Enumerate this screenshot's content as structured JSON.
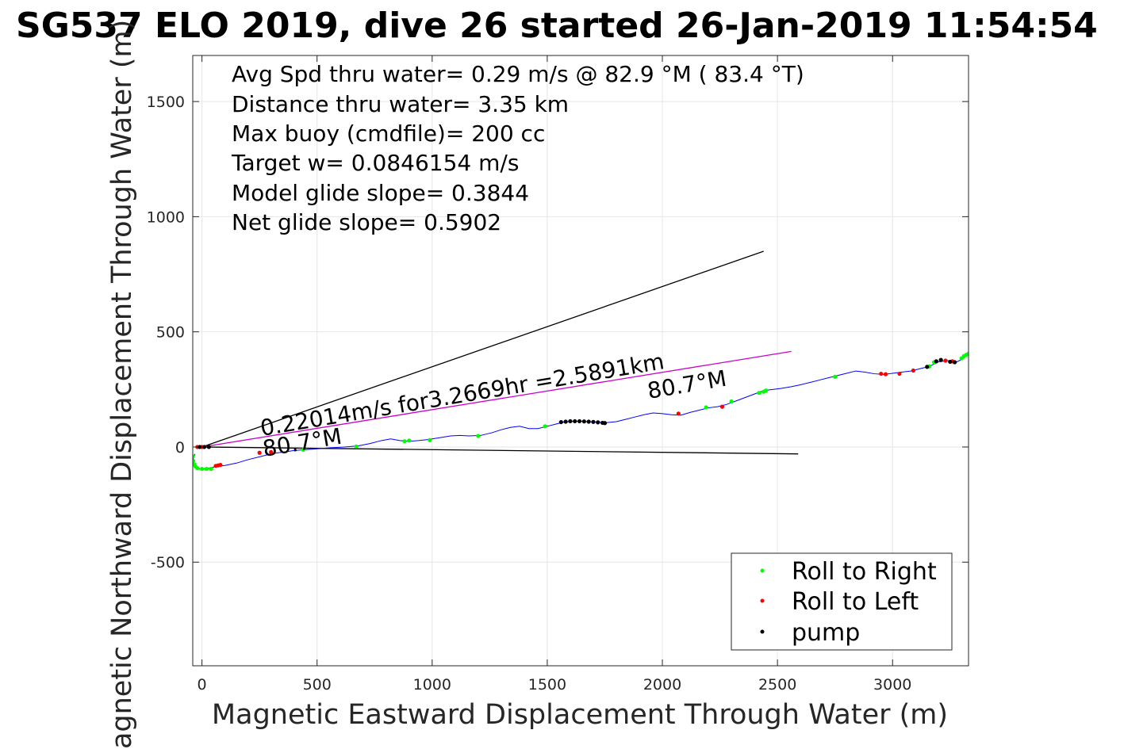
{
  "chart_data": {
    "type": "scatter",
    "title": "SG537 ELO 2019, dive 26 started 26-Jan-2019 11:54:54",
    "xlabel": "Magnetic Eastward Displacement Through Water (m)",
    "ylabel": "Magnetic Northward Displacement Through Water (m)",
    "xlim": [
      -40,
      3330
    ],
    "ylim": [
      -950,
      1700
    ],
    "xticks": [
      0,
      500,
      1000,
      1500,
      2000,
      2500,
      3000
    ],
    "yticks": [
      -500,
      0,
      500,
      1000,
      1500
    ],
    "grid": true,
    "stats": [
      "Avg Spd thru water=  0.29 m/s @  82.9 °M ( 83.4 °T)",
      "Distance thru water=  3.35 km",
      "Max buoy (cmdfile)= 200 cc",
      "Target w= 0.0846154 m/s",
      "Model glide slope= 0.3844",
      "Net glide slope= 0.5902"
    ],
    "annotations": {
      "current_label": "0.22014m/s for3.2669hr =2.5891km",
      "heading_label_1": "80.7°M",
      "heading_label_2": "80.7°M"
    },
    "reference_lines": [
      {
        "name": "upper",
        "color": "#000000",
        "x": [
          0,
          2440
        ],
        "y": [
          0,
          850
        ]
      },
      {
        "name": "lower",
        "color": "#000000",
        "x": [
          0,
          2590
        ],
        "y": [
          0,
          -30
        ]
      },
      {
        "name": "current",
        "color": "#cc00cc",
        "x": [
          0,
          2560
        ],
        "y": [
          0,
          415
        ]
      }
    ],
    "track": {
      "color": "#0000ff",
      "x": [
        -30,
        -40,
        -35,
        -20,
        0,
        30,
        60,
        100,
        150,
        200,
        260,
        300,
        330,
        370,
        400,
        440,
        500,
        560,
        620,
        680,
        730,
        780,
        820,
        860,
        900,
        940,
        980,
        1030,
        1080,
        1120,
        1160,
        1210,
        1260,
        1300,
        1340,
        1380,
        1420,
        1460,
        1500,
        1540,
        1570,
        1600,
        1640,
        1680,
        1720,
        1760,
        1800,
        1840,
        1880,
        1920,
        1960,
        2000,
        2040,
        2080,
        2120,
        2160,
        2200,
        2240,
        2280,
        2320,
        2360,
        2400,
        2440,
        2480,
        2520,
        2560,
        2600,
        2640,
        2680,
        2720,
        2760,
        2800,
        2840,
        2880,
        2920,
        2960,
        3000,
        3040,
        3080,
        3120,
        3160,
        3200,
        3240,
        3280,
        3300,
        3320,
        3330
      ],
      "y": [
        -30,
        -55,
        -80,
        -95,
        -95,
        -92,
        -85,
        -80,
        -70,
        -55,
        -40,
        -30,
        -25,
        -20,
        -15,
        -12,
        -8,
        -3,
        0,
        5,
        15,
        28,
        35,
        28,
        25,
        28,
        32,
        40,
        48,
        50,
        48,
        50,
        62,
        75,
        85,
        90,
        80,
        80,
        90,
        100,
        108,
        110,
        112,
        110,
        108,
        106,
        110,
        120,
        130,
        140,
        148,
        145,
        140,
        138,
        150,
        160,
        170,
        175,
        185,
        200,
        215,
        230,
        245,
        250,
        255,
        262,
        270,
        280,
        290,
        300,
        310,
        320,
        330,
        325,
        318,
        315,
        320,
        325,
        330,
        340,
        350,
        370,
        375,
        370,
        380,
        395,
        405
      ]
    },
    "markers": {
      "roll_right": {
        "color": "#00ff00",
        "x": [
          -40,
          -38,
          -34,
          -28,
          -20,
          0,
          20,
          40,
          440,
          670,
          880,
          900,
          990,
          1200,
          1490,
          2190,
          2300,
          2420,
          2440,
          2450,
          2750,
          3160,
          3180,
          3300,
          3310,
          3320,
          3330
        ],
        "y": [
          -40,
          -60,
          -75,
          -85,
          -92,
          -95,
          -95,
          -95,
          -12,
          2,
          25,
          28,
          30,
          48,
          90,
          172,
          198,
          235,
          240,
          245,
          305,
          350,
          368,
          385,
          395,
          400,
          405
        ]
      },
      "roll_left": {
        "color": "#ff0000",
        "x": [
          -20,
          0,
          60,
          70,
          80,
          250,
          300,
          2070,
          2260,
          2950,
          2970,
          3030,
          3090,
          3230,
          3260
        ],
        "y": [
          0,
          0,
          -82,
          -80,
          -78,
          -25,
          -22,
          145,
          175,
          318,
          316,
          318,
          332,
          375,
          372
        ]
      },
      "pump": {
        "color": "#000000",
        "x": [
          -10,
          10,
          30,
          1560,
          1580,
          1600,
          1620,
          1640,
          1660,
          1680,
          1700,
          1720,
          1740,
          1750,
          3150,
          3190,
          3210,
          3250,
          3270
        ],
        "y": [
          0,
          0,
          0,
          108,
          110,
          112,
          112,
          112,
          111,
          110,
          109,
          107,
          105,
          104,
          348,
          372,
          378,
          370,
          368
        ]
      }
    },
    "legend": {
      "position": "bottom-right",
      "entries": [
        {
          "label": "Roll to Right",
          "color": "#00ff00"
        },
        {
          "label": "Roll to Left",
          "color": "#ff0000"
        },
        {
          "label": "pump",
          "color": "#000000"
        }
      ]
    }
  }
}
